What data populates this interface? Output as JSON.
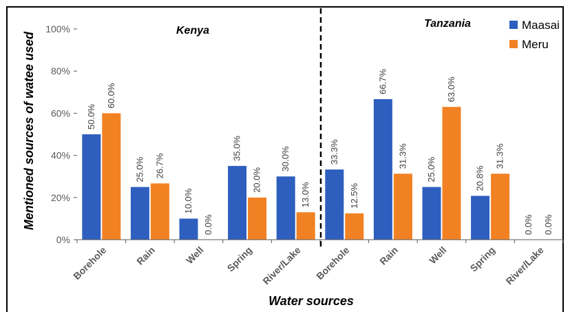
{
  "chart_data": {
    "type": "bar",
    "xlabel": "Water sources",
    "ylabel": "Mentioned sources of watee used",
    "ylim": [
      0,
      100
    ],
    "yticks": [
      "0%",
      "20%",
      "40%",
      "60%",
      "80%",
      "100%"
    ],
    "grid": false,
    "legend_position": "top-right",
    "groups": [
      {
        "label": "Kenya",
        "categories": [
          "Borehole",
          "Rain",
          "Well",
          "Spring",
          "River/Lake"
        ]
      },
      {
        "label": "Tanzania",
        "categories": [
          "Borehole",
          "Rain",
          "Well",
          "Spring",
          "River/Lake"
        ]
      }
    ],
    "series": [
      {
        "name": "Maasai",
        "color": "#2E5FBF",
        "values": [
          50.0,
          25.0,
          10.0,
          35.0,
          30.0,
          33.3,
          66.7,
          25.0,
          20.8,
          0.0
        ],
        "labels": [
          "50.0%",
          "25.0%",
          "10.0%",
          "35.0%",
          "30.0%",
          "33.3%",
          "66.7%",
          "25.0%",
          "20.8%",
          "0.0%"
        ]
      },
      {
        "name": "Meru",
        "color": "#F28123",
        "values": [
          60.0,
          26.7,
          0.0,
          20.0,
          13.0,
          12.5,
          31.3,
          63.0,
          31.3,
          0.0
        ],
        "labels": [
          "60.0%",
          "26.7%",
          "0.0%",
          "20.0%",
          "13.0%",
          "12.5%",
          "31.3%",
          "63.0%",
          "31.3%",
          "0.0%"
        ]
      }
    ]
  }
}
